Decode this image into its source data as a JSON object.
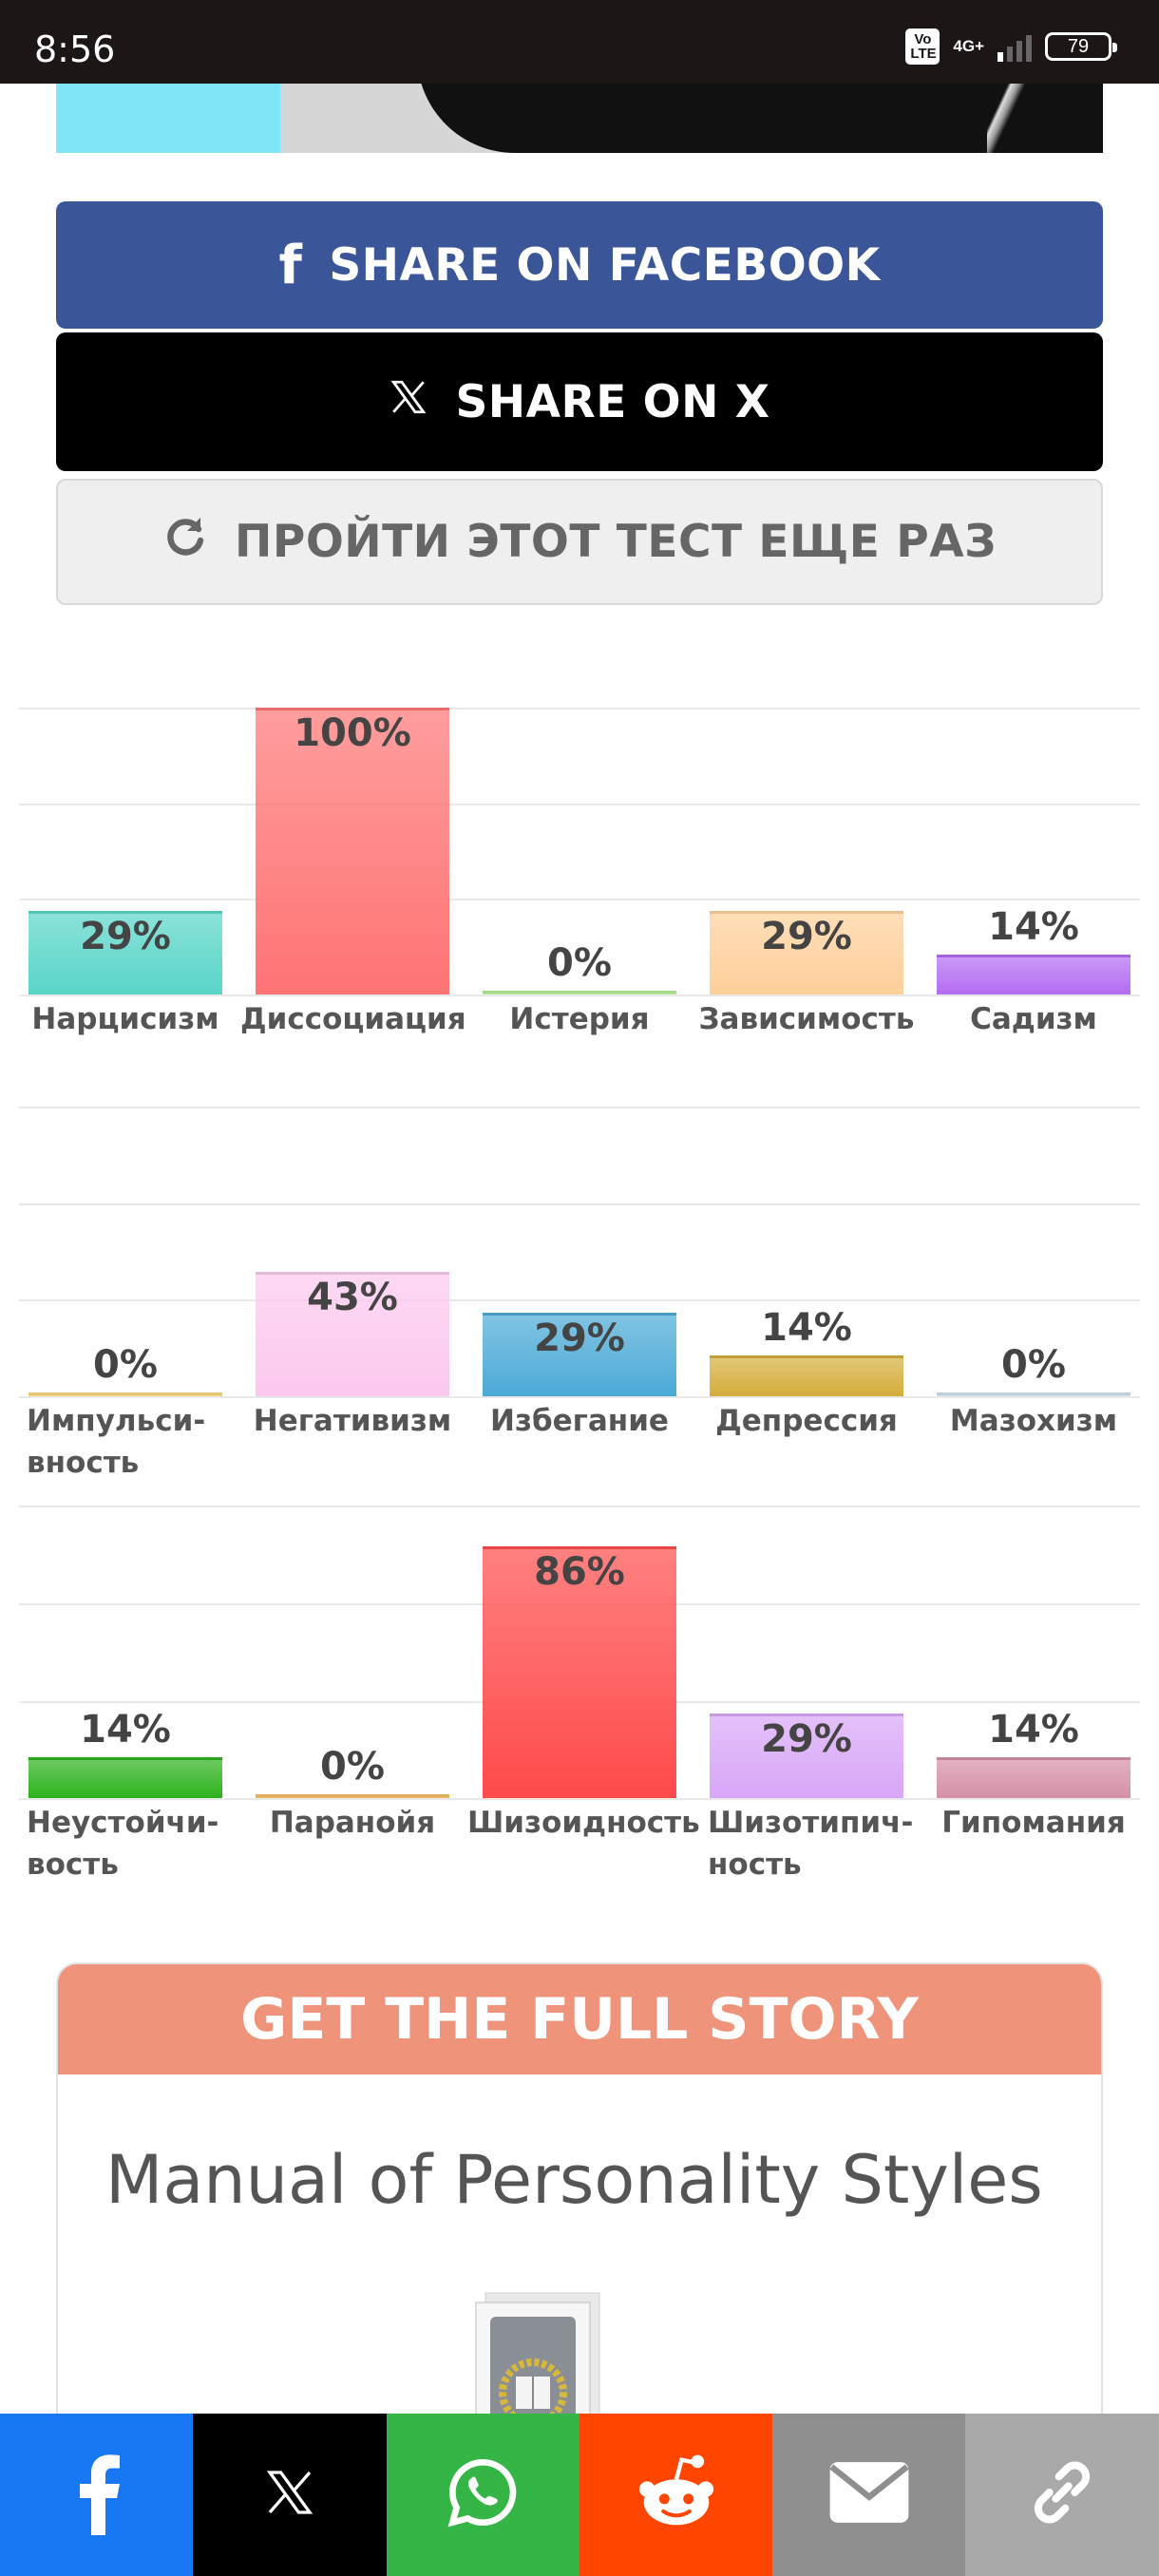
{
  "status_bar": {
    "time": "8:56",
    "volte_label": "Vo LTE",
    "network": "4G+",
    "battery": "79"
  },
  "share": {
    "facebook_label": "SHARE ON FACEBOOK",
    "x_label": "SHARE ON X",
    "retry_label": "ПРОЙТИ ЭТОТ ТЕСТ ЕЩЕ РАЗ"
  },
  "chart_data": [
    {
      "type": "bar",
      "categories": [
        "Нарцисизм",
        "Диссоциация",
        "Истерия",
        "Зависимость",
        "Садизм"
      ],
      "values": [
        29,
        100,
        0,
        29,
        14
      ],
      "value_labels": [
        "29%",
        "100%",
        "0%",
        "29%",
        "14%"
      ],
      "colors": [
        "#58d5c8",
        "#ff7373",
        "#a8ea88",
        "#ffcf9a",
        "#b36cf2"
      ],
      "ylim": [
        0,
        100
      ]
    },
    {
      "type": "bar",
      "categories": [
        "Импульси-вность",
        "Негативизм",
        "Избегание",
        "Депрессия",
        "Мазохизм"
      ],
      "values": [
        0,
        43,
        29,
        14,
        0
      ],
      "value_labels": [
        "0%",
        "43%",
        "29%",
        "14%",
        "0%"
      ],
      "colors": [
        "#f5d06a",
        "#fcc8ee",
        "#4aaad6",
        "#d4ad3a",
        "#c9dbe4"
      ],
      "ylim": [
        0,
        100
      ]
    },
    {
      "type": "bar",
      "categories": [
        "Неустойчи-вость",
        "Паранойя",
        "Шизоидность",
        "Шизотипич-ность",
        "Гипомания"
      ],
      "values": [
        14,
        0,
        86,
        29,
        14
      ],
      "value_labels": [
        "14%",
        "0%",
        "86%",
        "29%",
        "14%"
      ],
      "colors": [
        "#2db21c",
        "#f3b24a",
        "#ff4a4a",
        "#d8a6f7",
        "#d48fa6"
      ],
      "ylim": [
        0,
        100
      ]
    }
  ],
  "story": {
    "header": "GET THE FULL STORY",
    "title": "Manual of Personality Styles"
  },
  "bottom_bar": {
    "colors": [
      "#1877f2",
      "#000000",
      "#34b546",
      "#ff4500",
      "#8f8f8f",
      "#a9a9a9"
    ]
  }
}
